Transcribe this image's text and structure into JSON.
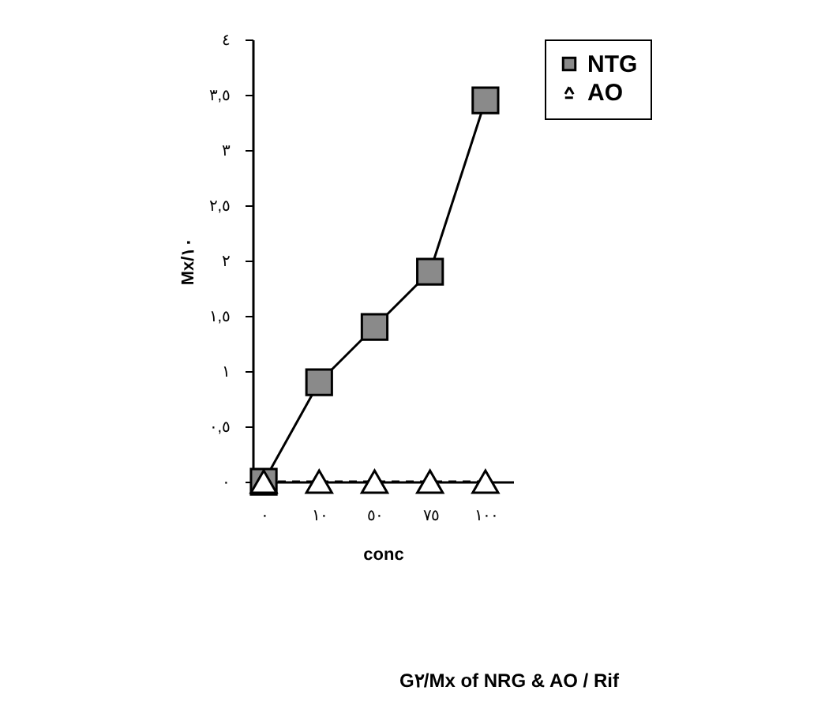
{
  "chart_data": {
    "type": "line",
    "title": "G٢/Mx of NRG & AO / Rif",
    "xlabel": "conc",
    "ylabel": "Mx/١٠",
    "categories": [
      "٠",
      "١٠",
      "٥٠",
      "٧٥",
      "١٠٠"
    ],
    "series": [
      {
        "name": "NTG",
        "color": "#000000",
        "marker": "square",
        "line_style": "solid",
        "values": [
          0,
          0.9,
          1.4,
          1.9,
          3.45
        ]
      },
      {
        "name": "AO",
        "color": "#000000",
        "marker": "triangle",
        "line_style": "dashed",
        "values": [
          0,
          0,
          0,
          0,
          0
        ]
      }
    ],
    "ylim": [
      0,
      4
    ],
    "yticks": [
      {
        "value": 0,
        "label": "٠"
      },
      {
        "value": 0.5,
        "label": "٠,٥"
      },
      {
        "value": 1,
        "label": "١"
      },
      {
        "value": 1.5,
        "label": "١,٥"
      },
      {
        "value": 2,
        "label": "٢"
      },
      {
        "value": 2.5,
        "label": "٢,٥"
      },
      {
        "value": 3,
        "label": "٣"
      },
      {
        "value": 3.5,
        "label": "٣,٥"
      },
      {
        "value": 4,
        "label": "٤"
      }
    ],
    "grid": false,
    "legend": "top right"
  }
}
